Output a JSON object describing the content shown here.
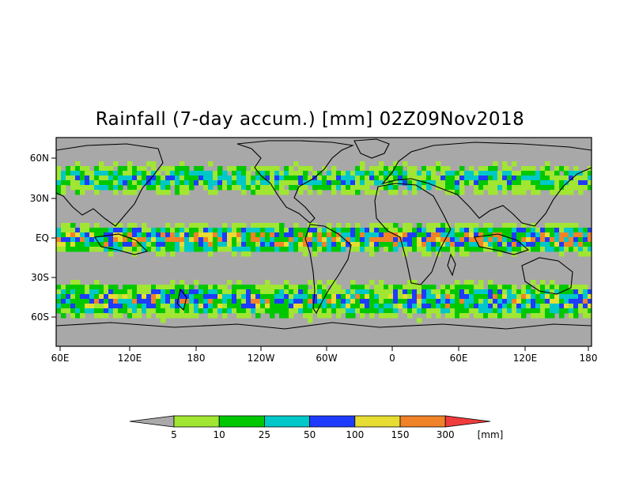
{
  "title": "Rainfall (7-day accum.) [mm] 02Z09Nov2018",
  "lon_labels": [
    "60E",
    "120E",
    "180",
    "120W",
    "60W",
    "0",
    "60E",
    "120E",
    "180"
  ],
  "lat_labels": [
    "60N",
    "30N",
    "EQ",
    "30S",
    "60S"
  ],
  "legend": {
    "unit": "[mm]",
    "thresholds": [
      "5",
      "10",
      "25",
      "50",
      "100",
      "150",
      "300"
    ],
    "colors": [
      "#aaaaaa",
      "#a0e632",
      "#00c800",
      "#00c8c8",
      "#1e3cff",
      "#e6dc32",
      "#f08228",
      "#f03c3c"
    ]
  },
  "palette": {
    "ocean": "#a8a8a8",
    "land": "#a8a8a8",
    "coast": "#000000"
  }
}
